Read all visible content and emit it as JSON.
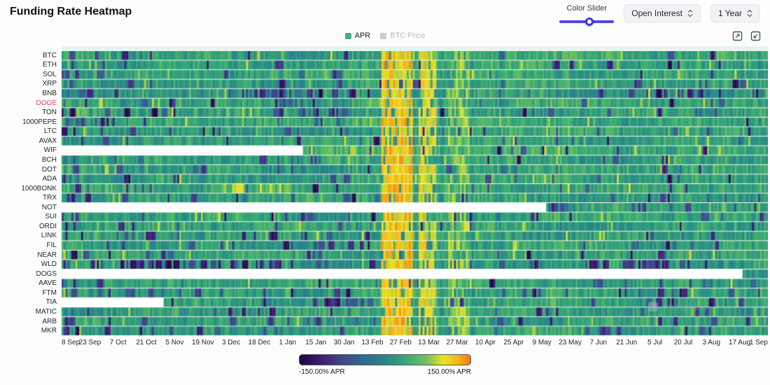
{
  "header": {
    "title": "Funding Rate Heatmap"
  },
  "controls": {
    "color_slider": {
      "label": "Color Slider",
      "value_pct": 55,
      "color": "#4f46e5"
    },
    "metric_select": {
      "value": "Open Interest"
    },
    "range_select": {
      "value": "1 Year"
    }
  },
  "legend": {
    "items": [
      {
        "label": "APR",
        "color": "#44b183",
        "active": true
      },
      {
        "label": "BTC Price",
        "color": "#c9ccd1",
        "active": false
      }
    ]
  },
  "watermark": {
    "text": "coinglass"
  },
  "chart_data": {
    "type": "heatmap",
    "title": "Funding Rate Heatmap",
    "unit": "% APR",
    "value_range": [
      -150,
      150
    ],
    "days": 360,
    "x_ticks": [
      "8 Sep",
      "23 Sep",
      "7 Oct",
      "21 Oct",
      "5 Nov",
      "19 Nov",
      "3 Dec",
      "18 Dec",
      "1 Jan",
      "15 Jan",
      "30 Jan",
      "13 Feb",
      "27 Feb",
      "13 Mar",
      "27 Mar",
      "10 Apr",
      "25 Apr",
      "9 May",
      "23 May",
      "7 Jun",
      "21 Jun",
      "5 Jul",
      "20 Jul",
      "3 Aug",
      "17 Aug",
      "1 Sep"
    ],
    "highlighted_row": "DOGE",
    "highlight_color": "#e0456e",
    "rows": [
      {
        "label": "BTC",
        "base": 30,
        "dp": 0.015,
        "miss": 0,
        "dark": [],
        "hot": []
      },
      {
        "label": "ETH",
        "base": 28,
        "dp": 0.025,
        "miss": 0,
        "dark": [],
        "hot": []
      },
      {
        "label": "SOL",
        "base": 32,
        "dp": 0.03,
        "miss": 0,
        "dark": [],
        "hot": []
      },
      {
        "label": "XRP",
        "base": 26,
        "dp": 0.045,
        "miss": 0,
        "dark": [],
        "hot": []
      },
      {
        "label": "BNB",
        "base": 20,
        "dp": 0.05,
        "miss": 0,
        "dark": [
          [
            0.24,
            0.47,
            0.45
          ],
          [
            0.85,
            0.93,
            0.3
          ]
        ],
        "hot": []
      },
      {
        "label": "DOGE",
        "base": 30,
        "dp": 0.04,
        "miss": 0,
        "dark": [],
        "hot": [
          [
            0.25,
            0.28,
            50,
            0.35
          ]
        ]
      },
      {
        "label": "TON",
        "base": 24,
        "dp": 0.05,
        "miss": 0,
        "dark": [
          [
            0.3,
            0.4,
            0.3
          ]
        ],
        "hot": []
      },
      {
        "label": "1000PEPE",
        "base": 32,
        "dp": 0.035,
        "miss": 0,
        "dark": [],
        "hot": [
          [
            0.25,
            0.3,
            55,
            0.4
          ]
        ]
      },
      {
        "label": "LTC",
        "base": 26,
        "dp": 0.04,
        "miss": 0,
        "dark": [],
        "hot": []
      },
      {
        "label": "AVAX",
        "base": 28,
        "dp": 0.035,
        "miss": 0,
        "dark": [],
        "hot": []
      },
      {
        "label": "WIF",
        "base": 34,
        "dp": 0.03,
        "miss": 0.339,
        "dark": [],
        "hot": [
          [
            0.34,
            0.43,
            75,
            0.5
          ]
        ]
      },
      {
        "label": "BCH",
        "base": 27,
        "dp": 0.035,
        "miss": 0,
        "dark": [],
        "hot": []
      },
      {
        "label": "DOT",
        "base": 26,
        "dp": 0.04,
        "miss": 0,
        "dark": [],
        "hot": []
      },
      {
        "label": "ADA",
        "base": 27,
        "dp": 0.04,
        "miss": 0,
        "dark": [],
        "hot": []
      },
      {
        "label": "1000BONK",
        "base": 32,
        "dp": 0.03,
        "miss": 0,
        "dark": [],
        "hot": [
          [
            0.24,
            0.34,
            85,
            0.5
          ]
        ]
      },
      {
        "label": "TRX",
        "base": 25,
        "dp": 0.045,
        "miss": 0,
        "dark": [],
        "hot": []
      },
      {
        "label": "NOT",
        "base": 28,
        "dp": 0.05,
        "miss": 0.685,
        "dark": [
          [
            0.685,
            0.712,
            0.85
          ]
        ],
        "hot": []
      },
      {
        "label": "SUI",
        "base": 26,
        "dp": 0.045,
        "miss": 0,
        "dark": [],
        "hot": []
      },
      {
        "label": "ORDI",
        "base": 28,
        "dp": 0.04,
        "miss": 0,
        "dark": [],
        "hot": []
      },
      {
        "label": "LINK",
        "base": 26,
        "dp": 0.04,
        "miss": 0,
        "dark": [],
        "hot": []
      },
      {
        "label": "FIL",
        "base": 26,
        "dp": 0.04,
        "miss": 0,
        "dark": [],
        "hot": []
      },
      {
        "label": "NEAR",
        "base": 28,
        "dp": 0.035,
        "miss": 0,
        "dark": [],
        "hot": []
      },
      {
        "label": "WLD",
        "base": 20,
        "dp": 0.06,
        "miss": 0,
        "dark": [
          [
            0.05,
            0.3,
            0.28
          ],
          [
            0.74,
            0.86,
            0.3
          ]
        ],
        "hot": []
      },
      {
        "label": "DOGS",
        "base": 22,
        "dp": 0.09,
        "miss": 0.962,
        "dark": [],
        "hot": []
      },
      {
        "label": "AAVE",
        "base": 28,
        "dp": 0.035,
        "miss": 0,
        "dark": [],
        "hot": []
      },
      {
        "label": "FTM",
        "base": 26,
        "dp": 0.045,
        "miss": 0,
        "dark": [],
        "hot": []
      },
      {
        "label": "TIA",
        "base": 27,
        "dp": 0.04,
        "miss": 0.143,
        "dark": [
          [
            0.34,
            0.45,
            0.35
          ],
          [
            0.8,
            0.88,
            0.25
          ]
        ],
        "hot": []
      },
      {
        "label": "MATIC",
        "base": 26,
        "dp": 0.04,
        "miss": 0,
        "dark": [],
        "hot": []
      },
      {
        "label": "ARB",
        "base": 25,
        "dp": 0.045,
        "miss": 0,
        "dark": [],
        "hot": []
      },
      {
        "label": "MKR",
        "base": 26,
        "dp": 0.045,
        "miss": 0,
        "dark": [],
        "hot": []
      }
    ],
    "dark_bands": [
      [
        0.0,
        0.02,
        0.15
      ],
      [
        0.06,
        0.13,
        0.04
      ],
      [
        0.295,
        0.405,
        0.05
      ],
      [
        0.84,
        0.92,
        0.04
      ]
    ],
    "hot_bands": [
      [
        0.452,
        0.497,
        115,
        0.85
      ],
      [
        0.503,
        0.53,
        100,
        0.75
      ],
      [
        0.545,
        0.575,
        80,
        0.55
      ],
      [
        0.252,
        0.278,
        40,
        0.3
      ],
      [
        0.585,
        0.6,
        45,
        0.25
      ]
    ],
    "colorbar": {
      "min_label": "-150.00% APR",
      "max_label": "150.00% APR",
      "stops": [
        {
          "pos": 0.0,
          "color": "#23053f"
        },
        {
          "pos": 0.12,
          "color": "#3d1a78"
        },
        {
          "pos": 0.25,
          "color": "#40488e"
        },
        {
          "pos": 0.38,
          "color": "#2f6b8e"
        },
        {
          "pos": 0.5,
          "color": "#27868a"
        },
        {
          "pos": 0.62,
          "color": "#35a874"
        },
        {
          "pos": 0.74,
          "color": "#6cc25e"
        },
        {
          "pos": 0.84,
          "color": "#e8e326"
        },
        {
          "pos": 0.93,
          "color": "#f8b018"
        },
        {
          "pos": 1.0,
          "color": "#ee7b0e"
        }
      ]
    }
  }
}
